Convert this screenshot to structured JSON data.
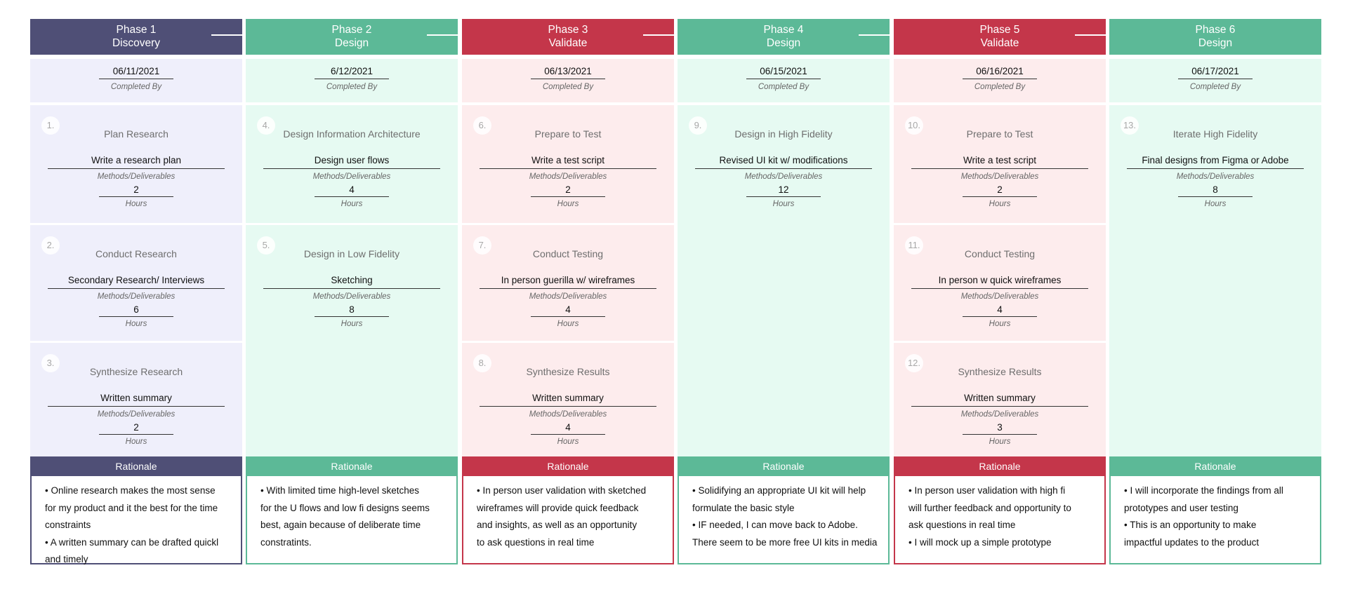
{
  "labels": {
    "completed_by": "Completed By",
    "methods": "Methods/Deliverables",
    "hours": "Hours",
    "rationale": "Rationale"
  },
  "colors": {
    "purple": "#4f4f76",
    "green": "#5cb997",
    "red": "#c4364a",
    "purple_bg": "#efeffb",
    "green_bg": "#e6faf2",
    "red_bg": "#fdeced"
  },
  "phases": [
    {
      "title": "Phase 1",
      "subtitle": "Discovery",
      "color": "purple",
      "date": "06/11/2021",
      "steps": [
        {
          "num": "1.",
          "title": "Plan Research",
          "method": "Write a research plan",
          "hours": "2"
        },
        {
          "num": "2.",
          "title": "Conduct Research",
          "method": "Secondary Research/ Interviews",
          "hours": "6"
        },
        {
          "num": "3.",
          "title": "Synthesize Research",
          "method": "Written summary",
          "hours": "2"
        }
      ],
      "rationale": [
        "• Online research makes the most sense",
        "for my product and it the best for the time",
        "constraints",
        "• A written summary can be drafted quickl",
        "and timely"
      ]
    },
    {
      "title": "Phase 2",
      "subtitle": "Design",
      "color": "green",
      "date": "6/12/2021",
      "steps": [
        {
          "num": "4.",
          "title": "Design Information Architecture",
          "method": "Design user flows",
          "hours": "4"
        },
        {
          "num": "5.",
          "title": "Design in Low Fidelity",
          "method": "Sketching",
          "hours": "8"
        }
      ],
      "rationale": [
        "• With limited time high-level sketches",
        "for the U flows and low fi designs seems",
        "best, again because of deliberate time",
        "constratints."
      ]
    },
    {
      "title": "Phase 3",
      "subtitle": "Validate",
      "color": "red",
      "date": "06/13/2021",
      "steps": [
        {
          "num": "6.",
          "title": "Prepare to Test",
          "method": "Write a test script",
          "hours": "2"
        },
        {
          "num": "7.",
          "title": "Conduct Testing",
          "method": "In person guerilla w/ wireframes",
          "hours": "4"
        },
        {
          "num": "8.",
          "title": "Synthesize Results",
          "method": "Written summary",
          "hours": "4"
        }
      ],
      "rationale": [
        "• In person user validation with sketched",
        "wireframes will provide quick feedback",
        "and insights, as well as an opportunity",
        "to ask questions in real time"
      ]
    },
    {
      "title": "Phase 4",
      "subtitle": "Design",
      "color": "green",
      "date": "06/15/2021",
      "steps": [
        {
          "num": "9.",
          "title": "Design in High Fidelity",
          "method": "Revised UI kit w/ modifications",
          "hours": "12"
        }
      ],
      "rationale": [
        "• Solidifying an appropriate UI kit will help",
        "formulate the basic style",
        "• IF needed, I can move back to Adobe.",
        "There seem to be more free UI kits in media"
      ]
    },
    {
      "title": "Phase 5",
      "subtitle": "Validate",
      "color": "red",
      "date": "06/16/2021",
      "steps": [
        {
          "num": "10.",
          "title": "Prepare to Test",
          "method": "Write a test script",
          "hours": "2"
        },
        {
          "num": "11.",
          "title": "Conduct Testing",
          "method": "In person w quick wireframes",
          "hours": "4"
        },
        {
          "num": "12.",
          "title": "Synthesize Results",
          "method": "Written summary",
          "hours": "3"
        }
      ],
      "rationale": [
        "• In person user validation with high fi",
        "will further feedback and opportunity to",
        "ask questions in real time",
        "• I will mock up a simple prototype"
      ]
    },
    {
      "title": "Phase 6",
      "subtitle": "Design",
      "color": "green",
      "date": "06/17/2021",
      "steps": [
        {
          "num": "13.",
          "title": "Iterate High Fidelity",
          "method": "Final designs from Figma or Adobe",
          "hours": "8"
        }
      ],
      "rationale": [
        "• I will incorporate the findings from all",
        "prototypes and user testing",
        "• This is an opportunity to make",
        "impactful updates to the product"
      ]
    }
  ]
}
